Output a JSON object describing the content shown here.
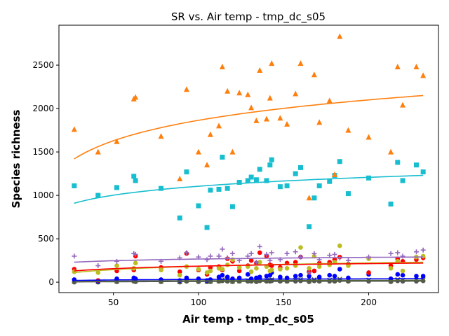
{
  "chart_data": {
    "type": "scatter",
    "title": "SR vs. Air temp - tmp_dc_s05",
    "xlabel": "Air temp - tmp_dc_s05",
    "ylabel": "Species richness",
    "xlim": [
      18,
      241
    ],
    "ylim": [
      -120,
      2960
    ],
    "xticks": [
      50,
      100,
      150,
      200
    ],
    "yticks": [
      0,
      500,
      1000,
      1500,
      2000,
      2500
    ],
    "grid": false,
    "colors": {
      "orange": "#ff7f0e",
      "cyan": "#17becf",
      "purple": "#9467bd",
      "olive": "#bcbd22",
      "red": "#ff0000",
      "blue": "#0000ff",
      "olivegreen": "#556b2f",
      "gray": "#555555"
    },
    "x": [
      27,
      41,
      52,
      62,
      63,
      78,
      89,
      93,
      100,
      105,
      107,
      112,
      114,
      117,
      120,
      124,
      129,
      131,
      134,
      136,
      140,
      142,
      143,
      148,
      152,
      157,
      160,
      165,
      168,
      171,
      177,
      180,
      183,
      188,
      200,
      213,
      217,
      220,
      228,
      232
    ],
    "series": [
      {
        "marker": "triangle",
        "color": "#ff7f0e",
        "values": [
          1760,
          1500,
          1620,
          2110,
          2130,
          1680,
          1190,
          2220,
          1500,
          1350,
          1700,
          1800,
          2480,
          2200,
          1500,
          2180,
          2160,
          2010,
          1860,
          2440,
          1880,
          2120,
          2520,
          1890,
          1820,
          2170,
          2520,
          970,
          2390,
          1840,
          2090,
          1240,
          2830,
          1750,
          1670,
          1500,
          2480,
          2040,
          2480,
          2380
        ],
        "fit": [
          1420,
          2150
        ]
      },
      {
        "marker": "square",
        "color": "#17becf",
        "values": [
          1110,
          1000,
          1090,
          1220,
          1170,
          1080,
          740,
          1270,
          880,
          630,
          1060,
          1070,
          1440,
          1080,
          870,
          1150,
          1170,
          1210,
          1180,
          1300,
          1170,
          1350,
          1410,
          1100,
          1110,
          1250,
          1320,
          640,
          970,
          1110,
          1160,
          1230,
          1390,
          1020,
          1200,
          900,
          1380,
          1170,
          1350,
          1270
        ],
        "fit": [
          910,
          1230
        ]
      },
      {
        "marker": "plus",
        "color": "#9467bd",
        "values": [
          300,
          190,
          240,
          330,
          320,
          240,
          280,
          340,
          290,
          260,
          300,
          300,
          380,
          280,
          330,
          250,
          300,
          330,
          230,
          410,
          320,
          250,
          340,
          260,
          330,
          350,
          290,
          110,
          330,
          260,
          310,
          320,
          280,
          250,
          290,
          330,
          340,
          300,
          350,
          370
        ],
        "fit": [
          230,
          290
        ]
      },
      {
        "marker": "circle",
        "color": "#bcbd22",
        "values": [
          120,
          110,
          190,
          160,
          220,
          140,
          80,
          180,
          150,
          110,
          130,
          160,
          150,
          200,
          260,
          170,
          180,
          120,
          160,
          230,
          180,
          130,
          140,
          150,
          160,
          190,
          400,
          160,
          300,
          180,
          200,
          230,
          420,
          190,
          270,
          160,
          240,
          130,
          290,
          300
        ],
        "fit": [
          110,
          230
        ]
      },
      {
        "marker": "circle",
        "color": "#ff0000",
        "values": [
          150,
          20,
          130,
          140,
          300,
          170,
          120,
          330,
          140,
          90,
          170,
          180,
          140,
          270,
          240,
          130,
          190,
          250,
          220,
          340,
          300,
          200,
          190,
          170,
          220,
          230,
          290,
          120,
          130,
          220,
          230,
          260,
          290,
          210,
          110,
          190,
          270,
          240,
          260,
          280
        ],
        "fit": [
          130,
          220
        ]
      },
      {
        "marker": "circle",
        "color": "#0000ff",
        "values": [
          30,
          10,
          40,
          50,
          40,
          30,
          20,
          50,
          40,
          20,
          30,
          60,
          80,
          60,
          40,
          50,
          90,
          40,
          50,
          60,
          70,
          80,
          110,
          60,
          50,
          70,
          80,
          70,
          130,
          60,
          80,
          70,
          150,
          50,
          90,
          40,
          90,
          80,
          70,
          70
        ],
        "fit": [
          20,
          40
        ]
      },
      {
        "marker": "x",
        "color": "#556b2f",
        "values": [
          10,
          5,
          10,
          20,
          15,
          10,
          5,
          20,
          15,
          10,
          10,
          15,
          30,
          20,
          10,
          15,
          20,
          20,
          15,
          25,
          20,
          25,
          30,
          20,
          15,
          25,
          30,
          15,
          30,
          20,
          25,
          20,
          35,
          20,
          25,
          15,
          30,
          25,
          25,
          30
        ],
        "fit": [
          8,
          22
        ]
      },
      {
        "marker": "circle",
        "color": "#555555",
        "values": [
          0,
          0,
          5,
          10,
          5,
          5,
          0,
          10,
          5,
          5,
          5,
          10,
          15,
          10,
          5,
          10,
          10,
          10,
          5,
          15,
          10,
          10,
          15,
          10,
          10,
          10,
          15,
          5,
          15,
          10,
          10,
          10,
          20,
          10,
          10,
          5,
          15,
          10,
          10,
          15
        ],
        "fit": [
          3,
          12
        ]
      }
    ]
  }
}
